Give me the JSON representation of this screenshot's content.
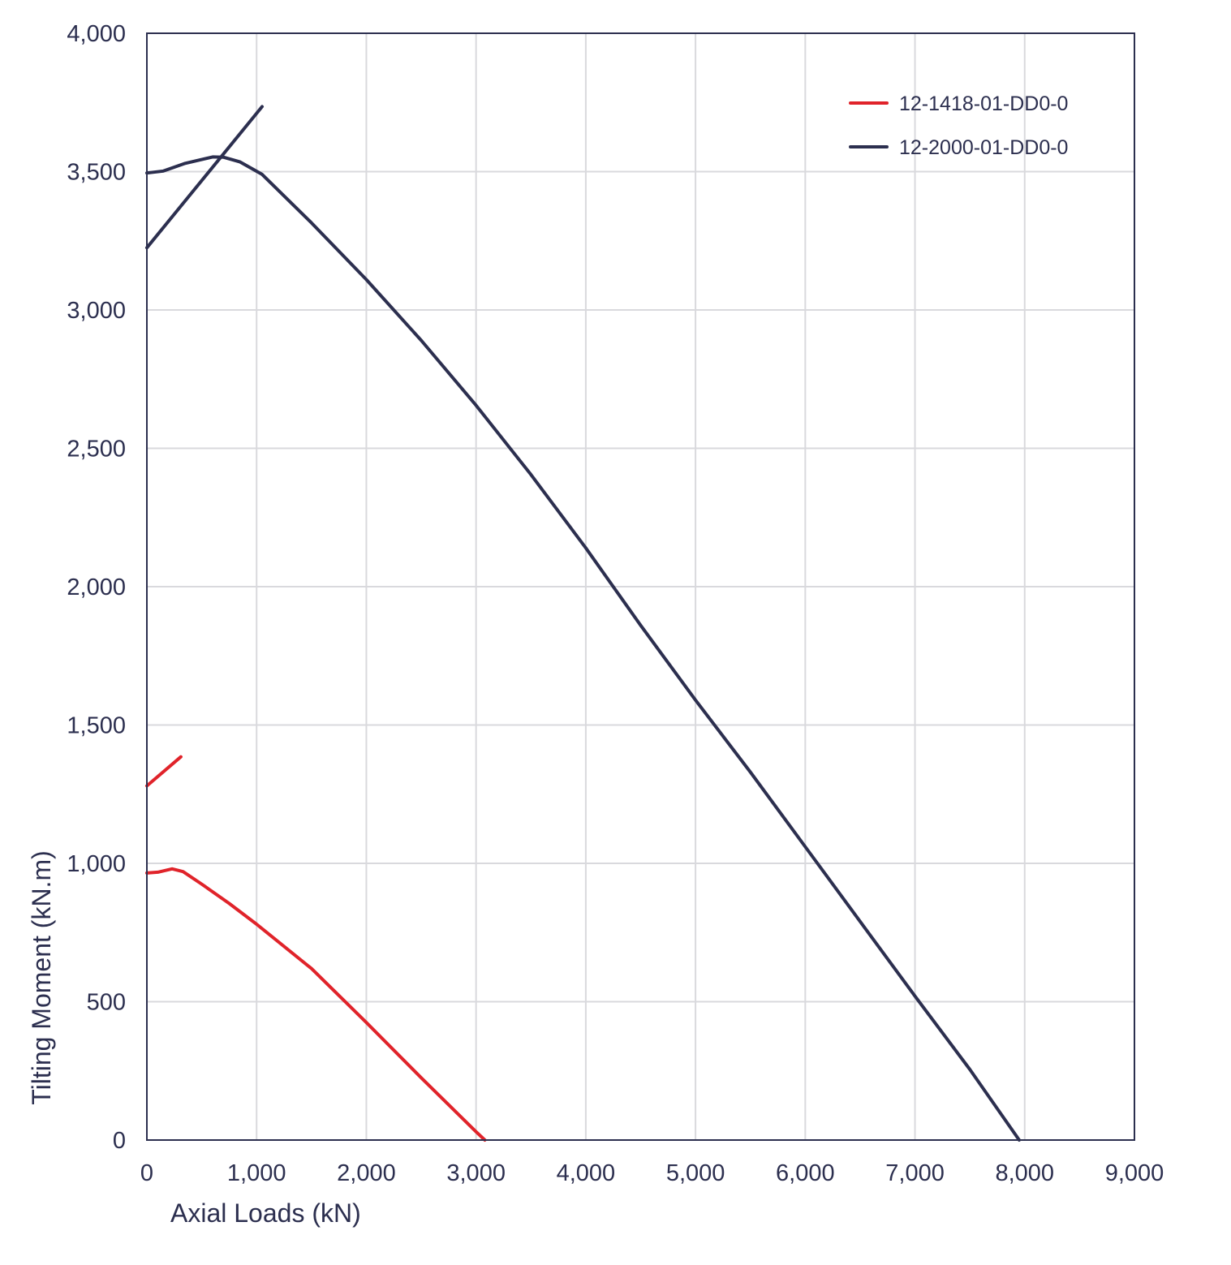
{
  "chart_data": {
    "type": "line",
    "xlabel": "Axial Loads (kN)",
    "ylabel": "Tilting Moment (kN.m)",
    "xlim": [
      0,
      9000
    ],
    "ylim": [
      0,
      4000
    ],
    "x_ticks": [
      0,
      1000,
      2000,
      3000,
      4000,
      5000,
      6000,
      7000,
      8000,
      9000
    ],
    "y_ticks": [
      0,
      500,
      1000,
      1500,
      2000,
      2500,
      3000,
      3500,
      4000
    ],
    "x_tick_labels": [
      "0",
      "1,000",
      "2,000",
      "3,000",
      "4,000",
      "5,000",
      "6,000",
      "7,000",
      "8,000",
      "9,000"
    ],
    "y_tick_labels": [
      "0",
      "500",
      "1,000",
      "1,500",
      "2,000",
      "2,500",
      "3,000",
      "3,500",
      "4,000"
    ],
    "grid": true,
    "legend_position": "top-right",
    "series": [
      {
        "name": "12-1418-01-DD0-0",
        "color": "#e0232a",
        "segments": [
          [
            [
              0,
              1280
            ],
            [
              310,
              1385
            ]
          ],
          [
            [
              0,
              965
            ],
            [
              100,
              968
            ],
            [
              230,
              980
            ],
            [
              330,
              970
            ],
            [
              500,
              925
            ],
            [
              750,
              855
            ],
            [
              1000,
              780
            ],
            [
              1500,
              620
            ],
            [
              2000,
              425
            ],
            [
              2500,
              225
            ],
            [
              3000,
              30
            ],
            [
              3080,
              0
            ]
          ]
        ]
      },
      {
        "name": "12-2000-01-DD0-0",
        "color": "#2c2f4f",
        "segments": [
          [
            [
              0,
              3225
            ],
            [
              1050,
              3735
            ]
          ],
          [
            [
              0,
              3495
            ],
            [
              150,
              3502
            ],
            [
              350,
              3530
            ],
            [
              600,
              3553
            ],
            [
              700,
              3552
            ],
            [
              850,
              3535
            ],
            [
              1050,
              3490
            ],
            [
              1500,
              3315
            ],
            [
              2000,
              3110
            ],
            [
              2500,
              2890
            ],
            [
              3000,
              2655
            ],
            [
              3500,
              2405
            ],
            [
              4000,
              2140
            ],
            [
              4500,
              1860
            ],
            [
              5000,
              1590
            ],
            [
              5500,
              1330
            ],
            [
              6000,
              1060
            ],
            [
              6500,
              790
            ],
            [
              7000,
              520
            ],
            [
              7500,
              255
            ],
            [
              7950,
              0
            ]
          ]
        ]
      }
    ]
  }
}
